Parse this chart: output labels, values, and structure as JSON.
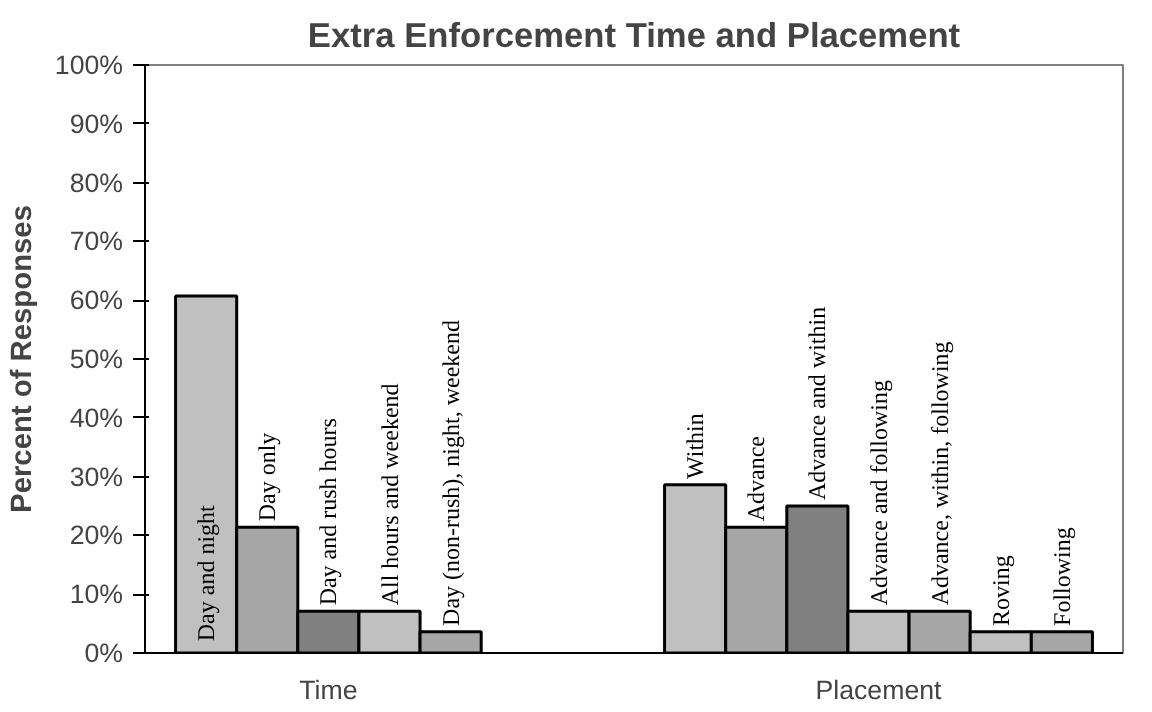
{
  "chart_data": {
    "type": "bar",
    "title": "Extra Enforcement Time and Placement",
    "ylabel": "Percent of Responses",
    "categories": [
      "Day and night",
      "Day only",
      "Day and rush hours",
      "All hours and weekend",
      "Day (non-rush), night, weekend",
      null,
      null,
      null,
      "Within",
      "Advance",
      "Advance and within",
      "Advance and following",
      "Advance, within, following",
      "Roving",
      "Following"
    ],
    "values": [
      60.7,
      21.4,
      7.1,
      7.1,
      3.6,
      null,
      null,
      null,
      28.6,
      21.4,
      25,
      7.1,
      7.1,
      3.6,
      3.6
    ],
    "colors": [
      "#c0c0c0",
      "#a6a6a6",
      "#808080",
      "#c0c0c0",
      "#a6a6a6",
      null,
      null,
      null,
      "#c0c0c0",
      "#a6a6a6",
      "#808080",
      "#c0c0c0",
      "#a6a6a6",
      "#c0c0c0",
      "#a6a6a6"
    ],
    "ylim": [
      0,
      100
    ],
    "yticks": [
      {
        "value": 0,
        "label": "0%"
      },
      {
        "value": 10,
        "label": "10%"
      },
      {
        "value": 20,
        "label": "20%"
      },
      {
        "value": 30,
        "label": "30%"
      },
      {
        "value": 40,
        "label": "40%"
      },
      {
        "value": 50,
        "label": "50%"
      },
      {
        "value": 60,
        "label": "60%"
      },
      {
        "value": 70,
        "label": "70%"
      },
      {
        "value": 80,
        "label": "80%"
      },
      {
        "value": 90,
        "label": "90%"
      },
      {
        "value": 100,
        "label": "100%"
      }
    ],
    "annotations": [
      "Time",
      "Placement"
    ],
    "grid": false
  }
}
